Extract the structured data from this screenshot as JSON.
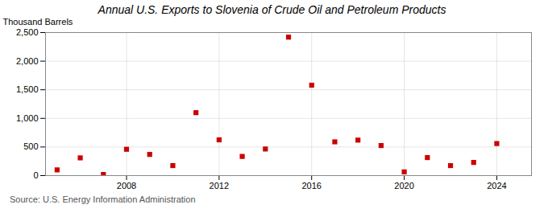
{
  "chart_data": {
    "type": "scatter",
    "title": "Annual U.S. Exports to Slovenia of Crude Oil and Petroleum Products",
    "ylabel": "Thousand Barrels",
    "source": "Source: U.S. Energy Information Administration",
    "x": [
      2005,
      2006,
      2007,
      2008,
      2009,
      2010,
      2011,
      2012,
      2013,
      2014,
      2015,
      2016,
      2017,
      2018,
      2019,
      2020,
      2021,
      2022,
      2023,
      2024
    ],
    "values": [
      100,
      310,
      20,
      460,
      370,
      175,
      1100,
      625,
      335,
      465,
      2420,
      1580,
      590,
      620,
      525,
      65,
      315,
      175,
      230,
      560
    ],
    "color": "#cc0000",
    "marker": "square",
    "xlim": [
      2004.5,
      2025.5
    ],
    "xticks": [
      2008,
      2012,
      2016,
      2020,
      2024
    ],
    "ylim": [
      0,
      2500
    ],
    "yticks": [
      0,
      500,
      {
        "value": 1000,
        "label": "1,000"
      },
      {
        "value": 1500,
        "label": "1,500"
      },
      {
        "value": 2000,
        "label": "2,000"
      },
      {
        "value": 2500,
        "label": "2,500"
      }
    ],
    "grid": true
  }
}
